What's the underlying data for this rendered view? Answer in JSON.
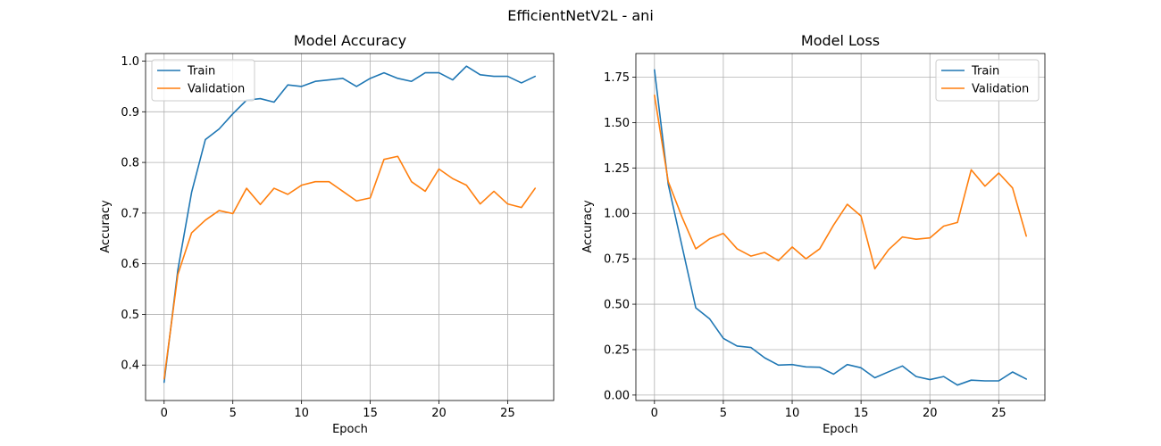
{
  "figure": {
    "suptitle": "EfficientNetV2L - ani"
  },
  "colors": {
    "train": "#1f77b4",
    "validation": "#ff7f0e",
    "grid": "#b0b0b0"
  },
  "chart_data": [
    {
      "type": "line",
      "title": "Model Accuracy",
      "xlabel": "Epoch",
      "ylabel": "Accuracy",
      "xlim": [
        -1.35,
        28.35
      ],
      "ylim": [
        0.33,
        1.015
      ],
      "xticks": [
        0,
        5,
        10,
        15,
        20,
        25
      ],
      "yticks": [
        0.4,
        0.5,
        0.6,
        0.7,
        0.8,
        0.9,
        1.0
      ],
      "ytick_labels": [
        "0.4",
        "0.5",
        "0.6",
        "0.7",
        "0.8",
        "0.9",
        "1.0"
      ],
      "grid": true,
      "legend": "upper left",
      "x": [
        0,
        1,
        2,
        3,
        4,
        5,
        6,
        7,
        8,
        9,
        10,
        11,
        12,
        13,
        14,
        15,
        16,
        17,
        18,
        19,
        20,
        21,
        22,
        23,
        24,
        25,
        26,
        27
      ],
      "series": [
        {
          "name": "Train",
          "color": "#1f77b4",
          "values": [
            0.366,
            0.588,
            0.741,
            0.845,
            0.866,
            0.896,
            0.923,
            0.926,
            0.919,
            0.953,
            0.95,
            0.96,
            0.963,
            0.966,
            0.95,
            0.966,
            0.977,
            0.966,
            0.96,
            0.977,
            0.977,
            0.963,
            0.99,
            0.973,
            0.97,
            0.97,
            0.957,
            0.97
          ]
        },
        {
          "name": "Validation",
          "color": "#ff7f0e",
          "values": [
            0.373,
            0.579,
            0.661,
            0.686,
            0.705,
            0.699,
            0.749,
            0.717,
            0.749,
            0.737,
            0.755,
            0.762,
            0.762,
            0.743,
            0.724,
            0.73,
            0.806,
            0.812,
            0.762,
            0.743,
            0.787,
            0.768,
            0.755,
            0.718,
            0.743,
            0.718,
            0.711,
            0.749
          ]
        }
      ]
    },
    {
      "type": "line",
      "title": "Model Loss",
      "xlabel": "Epoch",
      "ylabel": "Accuracy",
      "xlim": [
        -1.35,
        28.35
      ],
      "ylim": [
        -0.03,
        1.88
      ],
      "xticks": [
        0,
        5,
        10,
        15,
        20,
        25
      ],
      "yticks": [
        0.0,
        0.25,
        0.5,
        0.75,
        1.0,
        1.25,
        1.5,
        1.75
      ],
      "ytick_labels": [
        "0.00",
        "0.25",
        "0.50",
        "0.75",
        "1.00",
        "1.25",
        "1.50",
        "1.75"
      ],
      "grid": true,
      "legend": "upper right",
      "x": [
        0,
        1,
        2,
        3,
        4,
        5,
        6,
        7,
        8,
        9,
        10,
        11,
        12,
        13,
        14,
        15,
        16,
        17,
        18,
        19,
        20,
        21,
        22,
        23,
        24,
        25,
        26,
        27
      ],
      "series": [
        {
          "name": "Train",
          "color": "#1f77b4",
          "values": [
            1.79,
            1.16,
            0.82,
            0.48,
            0.42,
            0.312,
            0.27,
            0.262,
            0.205,
            0.165,
            0.168,
            0.155,
            0.153,
            0.115,
            0.168,
            0.15,
            0.095,
            0.128,
            0.16,
            0.102,
            0.085,
            0.102,
            0.055,
            0.082,
            0.078,
            0.078,
            0.127,
            0.088
          ]
        },
        {
          "name": "Validation",
          "color": "#ff7f0e",
          "values": [
            1.65,
            1.175,
            0.98,
            0.805,
            0.86,
            0.89,
            0.805,
            0.765,
            0.785,
            0.74,
            0.815,
            0.75,
            0.805,
            0.935,
            1.05,
            0.985,
            0.695,
            0.8,
            0.87,
            0.858,
            0.865,
            0.93,
            0.95,
            1.24,
            1.15,
            1.222,
            1.14,
            0.875
          ]
        }
      ]
    }
  ]
}
